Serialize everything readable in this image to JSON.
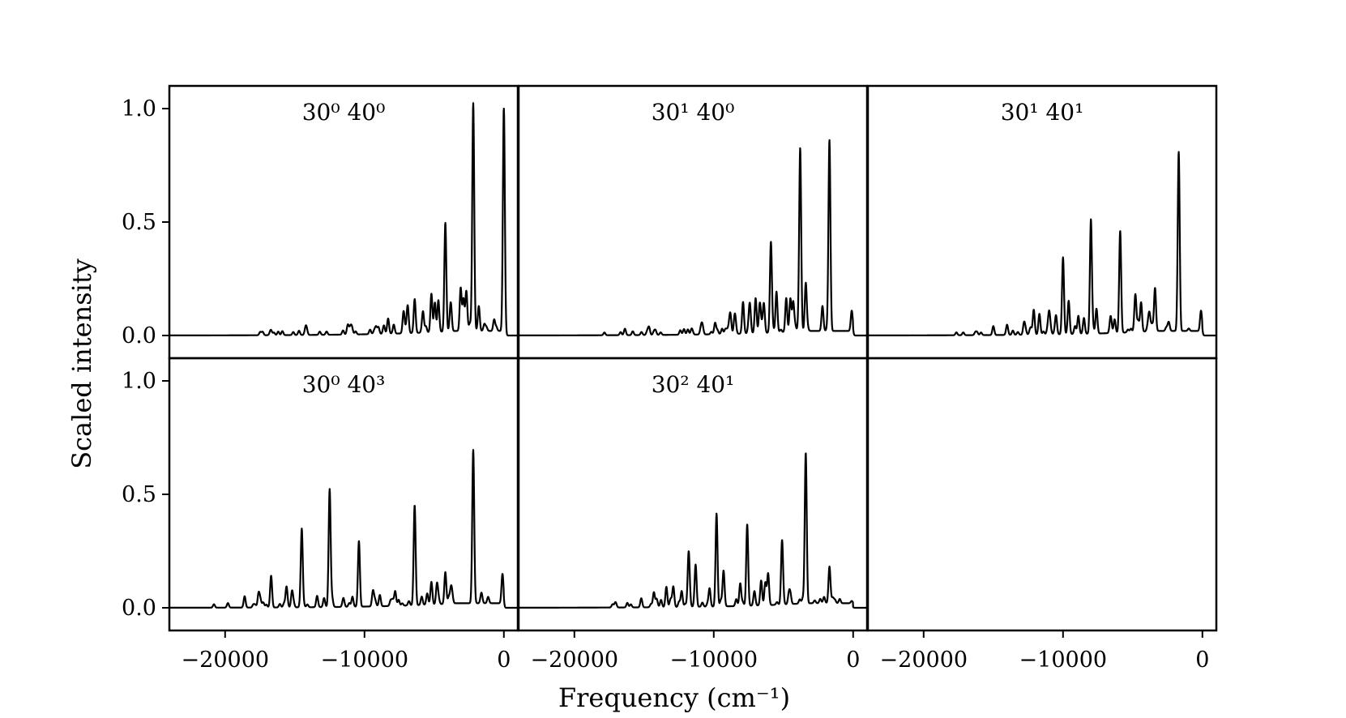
{
  "figure": {
    "xlabel": "Frequency (cm⁻¹)",
    "ylabel": "Scaled intensity"
  },
  "chart_data": [
    {
      "type": "line",
      "title": "30⁰ 40⁰",
      "xlim": [
        -24000,
        1000
      ],
      "ylim": [
        -0.1,
        1.1
      ],
      "xticks": [
        -20000,
        -10000,
        0
      ],
      "yticks": [
        0.0,
        0.5,
        1.0
      ],
      "peaks": [
        [
          0,
          1.0
        ],
        [
          -2200,
          0.98
        ],
        [
          -4200,
          0.48
        ],
        [
          -3100,
          0.19
        ],
        [
          -2700,
          0.15
        ],
        [
          -1800,
          0.11
        ],
        [
          -5200,
          0.17
        ],
        [
          -4700,
          0.14
        ],
        [
          -4950,
          0.13
        ],
        [
          -3800,
          0.1
        ],
        [
          -6400,
          0.15
        ],
        [
          -7200,
          0.09
        ],
        [
          -6900,
          0.08
        ],
        [
          -5800,
          0.06
        ],
        [
          -8300,
          0.05
        ],
        [
          -7900,
          0.04
        ],
        [
          -9000,
          0.03
        ],
        [
          -9600,
          0.02
        ],
        [
          -1400,
          0.03
        ],
        [
          -700,
          0.05
        ],
        [
          -2900,
          0.14
        ]
      ]
    },
    {
      "type": "line",
      "title": "30¹ 40⁰",
      "xlim": [
        -24000,
        1000
      ],
      "ylim": [
        -0.1,
        1.1
      ],
      "xticks": [
        -20000,
        -10000,
        0
      ],
      "yticks": [
        0.0,
        0.5,
        1.0
      ],
      "peaks": [
        [
          -1700,
          0.84
        ],
        [
          -3800,
          0.77
        ],
        [
          -5900,
          0.4
        ],
        [
          -3400,
          0.21
        ],
        [
          -5500,
          0.18
        ],
        [
          -4800,
          0.15
        ],
        [
          -4500,
          0.13
        ],
        [
          -4300,
          0.13
        ],
        [
          -2200,
          0.11
        ],
        [
          -7900,
          0.14
        ],
        [
          -7000,
          0.14
        ],
        [
          -6700,
          0.12
        ],
        [
          -6400,
          0.12
        ],
        [
          -8500,
          0.07
        ],
        [
          -8800,
          0.07
        ],
        [
          -7400,
          0.09
        ],
        [
          -9900,
          0.04
        ],
        [
          -10800,
          0.03
        ],
        [
          -11600,
          0.02
        ],
        [
          -12400,
          0.02
        ],
        [
          -100,
          0.09
        ]
      ]
    },
    {
      "type": "line",
      "title": "30¹ 40¹",
      "xlim": [
        -24000,
        1000
      ],
      "ylim": [
        -0.1,
        1.1
      ],
      "xticks": [
        -20000,
        -10000,
        0
      ],
      "yticks": [
        0.0,
        0.5,
        1.0
      ],
      "peaks": [
        [
          -1700,
          0.79
        ],
        [
          -8000,
          0.49
        ],
        [
          -5900,
          0.45
        ],
        [
          -10000,
          0.29
        ],
        [
          -3400,
          0.19
        ],
        [
          -4800,
          0.14
        ],
        [
          -4400,
          0.13
        ],
        [
          -9600,
          0.12
        ],
        [
          -7600,
          0.11
        ],
        [
          -12100,
          0.11
        ],
        [
          -11000,
          0.09
        ],
        [
          -8900,
          0.08
        ],
        [
          -8500,
          0.07
        ],
        [
          -10500,
          0.08
        ],
        [
          -11700,
          0.07
        ],
        [
          -12800,
          0.05
        ],
        [
          -6300,
          0.06
        ],
        [
          -3800,
          0.04
        ],
        [
          -2400,
          0.03
        ],
        [
          -100,
          0.09
        ],
        [
          -14000,
          0.03
        ],
        [
          -15000,
          0.02
        ]
      ]
    },
    {
      "type": "line",
      "title": "30⁰ 40³",
      "xlim": [
        -24000,
        1000
      ],
      "ylim": [
        -0.1,
        1.1
      ],
      "xticks": [
        -20000,
        -10000,
        0
      ],
      "yticks": [
        0.0,
        0.5,
        1.0
      ],
      "peaks": [
        [
          -2200,
          0.67
        ],
        [
          -12500,
          0.49
        ],
        [
          -6400,
          0.41
        ],
        [
          -14500,
          0.34
        ],
        [
          -10400,
          0.29
        ],
        [
          -16700,
          0.14
        ],
        [
          -4200,
          0.14
        ],
        [
          -5200,
          0.1
        ],
        [
          -4800,
          0.09
        ],
        [
          -15600,
          0.08
        ],
        [
          -17600,
          0.06
        ],
        [
          -9400,
          0.06
        ],
        [
          -8900,
          0.05
        ],
        [
          -13400,
          0.05
        ],
        [
          -3800,
          0.06
        ],
        [
          -18600,
          0.05
        ],
        [
          -100,
          0.13
        ],
        [
          -15200,
          0.07
        ],
        [
          -7800,
          0.04
        ],
        [
          -11500,
          0.03
        ],
        [
          -19800,
          0.02
        ],
        [
          -20800,
          0.015
        ],
        [
          -5500,
          0.05
        ],
        [
          -12900,
          0.04
        ]
      ]
    },
    {
      "type": "line",
      "title": "30² 40¹",
      "xlim": [
        -24000,
        1000
      ],
      "ylim": [
        -0.1,
        1.1
      ],
      "xticks": [
        -20000,
        -10000,
        0
      ],
      "yticks": [
        0.0,
        0.5,
        1.0
      ],
      "peaks": [
        [
          -3400,
          0.64
        ],
        [
          -9800,
          0.41
        ],
        [
          -7600,
          0.36
        ],
        [
          -5100,
          0.28
        ],
        [
          -11800,
          0.23
        ],
        [
          -11300,
          0.18
        ],
        [
          -1700,
          0.16
        ],
        [
          -9300,
          0.15
        ],
        [
          -6100,
          0.14
        ],
        [
          -6600,
          0.11
        ],
        [
          -6300,
          0.1
        ],
        [
          -8100,
          0.1
        ],
        [
          -13400,
          0.09
        ],
        [
          -12900,
          0.09
        ],
        [
          -10300,
          0.08
        ],
        [
          -12300,
          0.07
        ],
        [
          -14300,
          0.05
        ],
        [
          -15200,
          0.04
        ],
        [
          -16200,
          0.02
        ],
        [
          -4500,
          0.04
        ],
        [
          -100,
          0.01
        ]
      ]
    },
    {
      "type": "line",
      "title": "",
      "empty": true,
      "xlim": [
        -24000,
        1000
      ],
      "ylim": [
        -0.1,
        1.1
      ],
      "xticks": [
        -20000,
        -10000,
        0
      ],
      "yticks": []
    }
  ]
}
